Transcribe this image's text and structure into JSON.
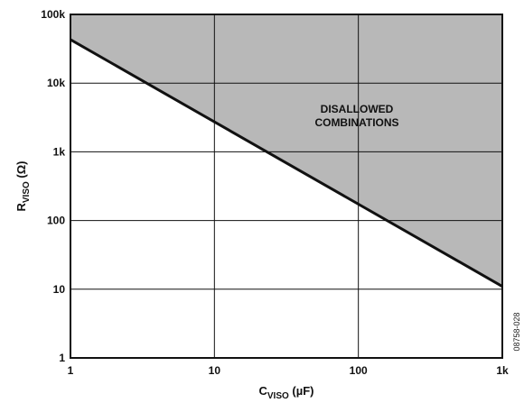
{
  "chart_data": {
    "type": "area",
    "title": "",
    "xlabel": {
      "main": "C",
      "sub": "VISO",
      "unit": " (µF)"
    },
    "ylabel": {
      "main": "R",
      "sub": "VISO",
      "unit": " (Ω)"
    },
    "x_scale": "log",
    "y_scale": "log",
    "xlim": [
      1,
      1000
    ],
    "ylim": [
      1,
      100000
    ],
    "x_ticks": [
      {
        "value": 1,
        "label": "1"
      },
      {
        "value": 10,
        "label": "10"
      },
      {
        "value": 100,
        "label": "100"
      },
      {
        "value": 1000,
        "label": "1k"
      }
    ],
    "y_ticks": [
      {
        "value": 1,
        "label": "1"
      },
      {
        "value": 10,
        "label": "10"
      },
      {
        "value": 100,
        "label": "100"
      },
      {
        "value": 1000,
        "label": "1k"
      },
      {
        "value": 10000,
        "label": "10k"
      },
      {
        "value": 100000,
        "label": "100k"
      }
    ],
    "grid": true,
    "series": [
      {
        "x": [
          1,
          1000
        ],
        "y": [
          43000,
          11
        ]
      }
    ],
    "shaded_region": {
      "description": "area above the boundary line",
      "label_lines": [
        "DISALLOWED",
        "COMBINATIONS"
      ],
      "color": "#b8b8b8"
    },
    "line_color": "#111111",
    "figure_id": "08758-028"
  }
}
